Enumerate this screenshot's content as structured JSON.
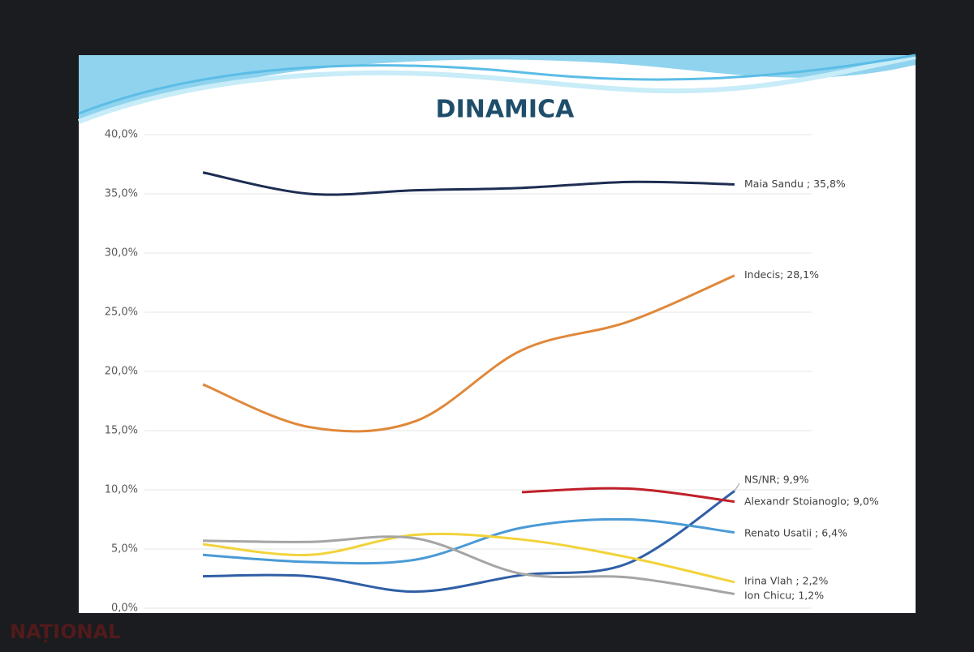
{
  "chart_data": {
    "type": "line",
    "title": "DINAMICA",
    "categories": [
      null,
      null,
      null,
      null,
      null,
      null
    ],
    "ylim": [
      0,
      40
    ],
    "yticks": [
      {
        "value": 0,
        "label": "0,0%"
      },
      {
        "value": 5,
        "label": "5,0%"
      },
      {
        "value": 10,
        "label": "10,0%"
      },
      {
        "value": 15,
        "label": "15,0%"
      },
      {
        "value": 20,
        "label": "20,0%"
      },
      {
        "value": 25,
        "label": "25,0%"
      },
      {
        "value": 30,
        "label": "30,0%"
      },
      {
        "value": 35,
        "label": "35,0%"
      },
      {
        "value": 40,
        "label": "40,0%"
      }
    ],
    "grid": true,
    "series": [
      {
        "color": "#1d2d52",
        "values": [
          36.8,
          35.0,
          35.3,
          35.5,
          36.0,
          35.8
        ],
        "value_labels": [
          null,
          null,
          null,
          null,
          null,
          "Maia Sandu ; 35,8%"
        ]
      },
      {
        "color": "#e0883a",
        "values": [
          18.9,
          15.3,
          15.8,
          21.8,
          24.2,
          28.1
        ],
        "value_labels": [
          null,
          null,
          null,
          null,
          null,
          "Indecis; 28,1%"
        ]
      },
      {
        "color": "#2f5fa6",
        "values": [
          2.7,
          2.7,
          1.4,
          2.8,
          3.8,
          9.9
        ],
        "value_labels": [
          null,
          null,
          null,
          null,
          null,
          "NS/NR; 9,9%"
        ]
      },
      {
        "color": "#c0202a",
        "values": [
          null,
          null,
          null,
          9.8,
          10.1,
          9.0
        ],
        "value_labels": [
          null,
          null,
          null,
          null,
          null,
          "Alexandr Stoianoglo; 9,0%"
        ]
      },
      {
        "color": "#4a9ad6",
        "values": [
          4.5,
          3.9,
          4.1,
          6.8,
          7.5,
          6.4
        ],
        "value_labels": [
          null,
          null,
          null,
          null,
          null,
          "Renato Usatii ; 6,4%"
        ]
      },
      {
        "color": "#f2d33a",
        "values": [
          5.4,
          4.5,
          6.2,
          5.8,
          4.3,
          2.2
        ],
        "value_labels": [
          null,
          null,
          null,
          null,
          null,
          "Irina Vlah ; 2,2%"
        ]
      },
      {
        "color": "#a5a5a5",
        "values": [
          5.7,
          5.6,
          5.9,
          2.9,
          2.6,
          1.2
        ],
        "value_labels": [
          null,
          null,
          null,
          null,
          null,
          "Ion Chicu; 1,2%"
        ]
      }
    ]
  },
  "watermark": "NAȚIONAL"
}
